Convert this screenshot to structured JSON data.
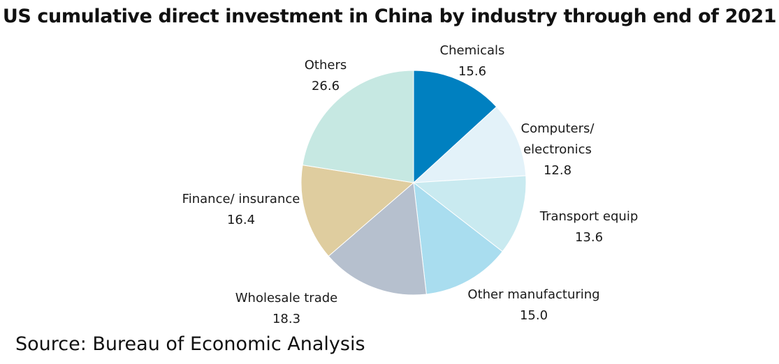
{
  "chart_data": {
    "type": "pie",
    "title": "US cumulative direct investment in China by industry through end of 2021",
    "start_angle_deg": 0,
    "direction": "clockwise",
    "slices": [
      {
        "label": "Chemicals",
        "value": 15.6,
        "color": "#0080C0"
      },
      {
        "label": "Computers/ electronics",
        "value": 12.8,
        "color": "#E3F2F9"
      },
      {
        "label": "Transport equip",
        "value": 13.6,
        "color": "#C9EAF0"
      },
      {
        "label": "Other manufacturing",
        "value": 15.0,
        "color": "#A9DDEF"
      },
      {
        "label": "Wholesale trade",
        "value": 18.3,
        "color": "#B6C0CE"
      },
      {
        "label": "Finance/ insurance",
        "value": 16.4,
        "color": "#DFCD9F"
      },
      {
        "label": "Others",
        "value": 26.6,
        "color": "#C6E8E2"
      }
    ]
  },
  "source": "Source: Bureau of Economic Analysis"
}
